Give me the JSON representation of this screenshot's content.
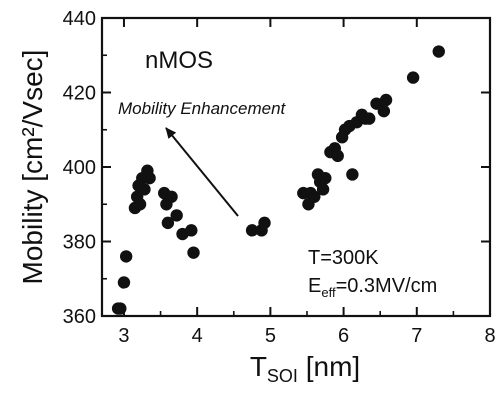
{
  "chart_data": {
    "type": "scatter",
    "xlabel": "T",
    "xlabel_sub": "SOI",
    "xlabel_unit": " [nm]",
    "ylabel": "Mobility [cm²/Vsec]",
    "xlim": [
      2.7,
      8
    ],
    "ylim": [
      360,
      440
    ],
    "xticks": [
      3,
      4,
      5,
      6,
      7,
      8
    ],
    "yticks": [
      360,
      380,
      400,
      420,
      440
    ],
    "grid": false,
    "series": [
      {
        "points": [
          [
            2.92,
            362
          ],
          [
            2.95,
            362
          ],
          [
            3.0,
            369
          ],
          [
            3.03,
            376
          ],
          [
            3.15,
            389
          ],
          [
            3.18,
            392
          ],
          [
            3.2,
            395
          ],
          [
            3.22,
            390
          ],
          [
            3.25,
            397
          ],
          [
            3.28,
            394
          ],
          [
            3.32,
            399
          ],
          [
            3.35,
            397
          ],
          [
            3.55,
            393
          ],
          [
            3.58,
            390
          ],
          [
            3.6,
            385
          ],
          [
            3.65,
            392
          ],
          [
            3.72,
            387
          ],
          [
            3.8,
            382
          ],
          [
            3.92,
            383
          ],
          [
            3.95,
            377
          ],
          [
            4.75,
            383
          ],
          [
            4.88,
            383
          ],
          [
            4.92,
            385
          ],
          [
            5.45,
            393
          ],
          [
            5.52,
            390
          ],
          [
            5.55,
            393
          ],
          [
            5.6,
            392
          ],
          [
            5.65,
            398
          ],
          [
            5.68,
            396
          ],
          [
            5.72,
            394
          ],
          [
            5.75,
            397
          ],
          [
            5.82,
            404
          ],
          [
            5.88,
            405
          ],
          [
            5.92,
            403
          ],
          [
            5.98,
            408
          ],
          [
            6.02,
            410
          ],
          [
            6.08,
            411
          ],
          [
            6.12,
            398
          ],
          [
            6.18,
            412
          ],
          [
            6.25,
            414
          ],
          [
            6.3,
            413
          ],
          [
            6.35,
            413
          ],
          [
            6.45,
            417
          ],
          [
            6.55,
            415
          ],
          [
            6.58,
            418
          ],
          [
            6.95,
            424
          ],
          [
            7.3,
            431
          ]
        ]
      }
    ],
    "annotations": {
      "device": "nMOS",
      "arrow_label": "Mobility Enhancement",
      "temperature": "T=300K",
      "field_prefix": "E",
      "field_sub": "eff",
      "field_suffix": "=0.3MV/cm"
    }
  }
}
